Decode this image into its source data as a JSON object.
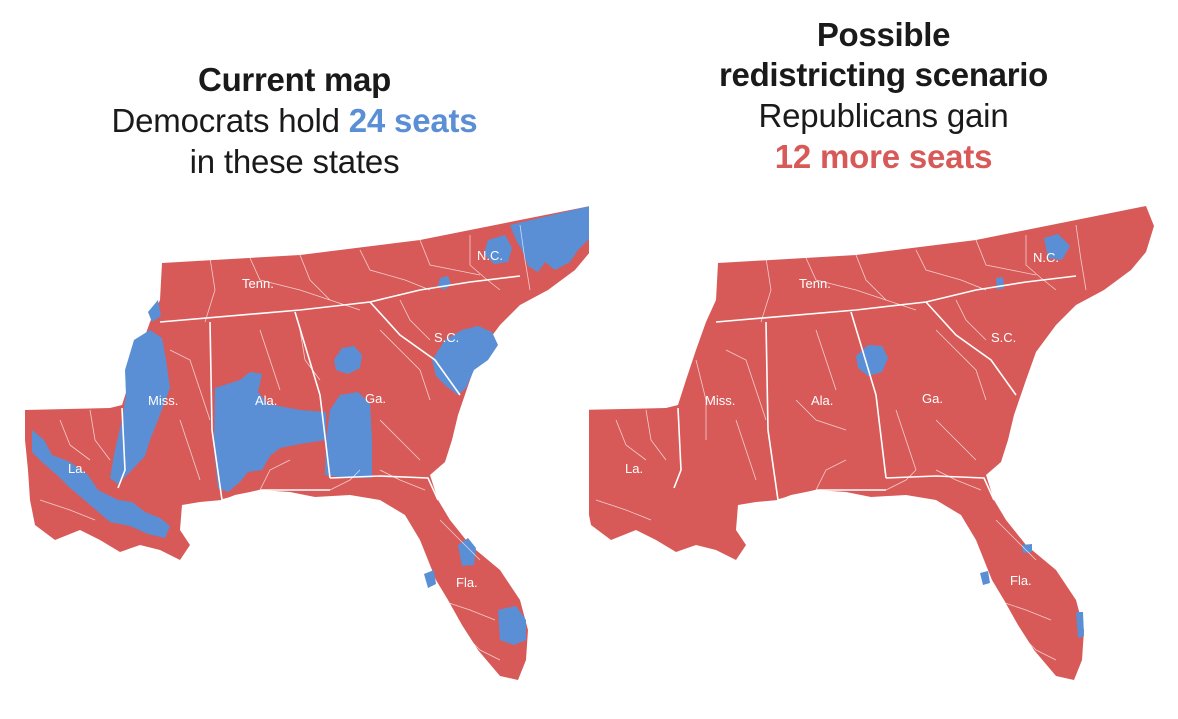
{
  "colors": {
    "republican": "#d75a58",
    "democrat": "#5a8fd6",
    "border": "#ffffff"
  },
  "current": {
    "title": "Current map",
    "subtitle_before": "Democrats hold ",
    "subtitle_highlight": "24 seats",
    "subtitle_after": "in these states",
    "states": {
      "tenn": "Tenn.",
      "nc": "N.C.",
      "sc": "S.C.",
      "miss": "Miss.",
      "ala": "Ala.",
      "ga": "Ga.",
      "la": "La.",
      "fla": "Fla."
    }
  },
  "scenario": {
    "title_line1": "Possible",
    "title_line2": "redistricting scenario",
    "subtitle_before": "Republicans gain",
    "subtitle_highlight": "12 more seats",
    "states": {
      "tenn": "Tenn.",
      "nc": "N.C.",
      "sc": "S.C.",
      "miss": "Miss.",
      "ala": "Ala.",
      "ga": "Ga.",
      "la": "La.",
      "fla": "Fla."
    }
  }
}
